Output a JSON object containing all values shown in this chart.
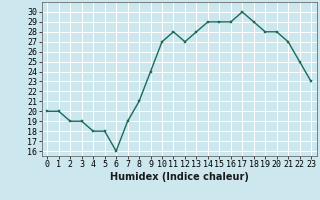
{
  "x": [
    0,
    1,
    2,
    3,
    4,
    5,
    6,
    7,
    8,
    9,
    10,
    11,
    12,
    13,
    14,
    15,
    16,
    17,
    18,
    19,
    20,
    21,
    22,
    23
  ],
  "y": [
    20,
    20,
    19,
    19,
    18,
    18,
    16,
    19,
    21,
    24,
    27,
    28,
    27,
    28,
    29,
    29,
    29,
    30,
    29,
    28,
    28,
    27,
    25,
    23
  ],
  "line_color": "#1a6b5a",
  "marker_color": "#1a6b5a",
  "bg_color": "#cce8ee",
  "grid_color": "#ffffff",
  "xlabel": "Humidex (Indice chaleur)",
  "xlim": [
    -0.5,
    23.5
  ],
  "ylim": [
    15.5,
    31.0
  ],
  "yticks": [
    16,
    17,
    18,
    19,
    20,
    21,
    22,
    23,
    24,
    25,
    26,
    27,
    28,
    29,
    30
  ],
  "xticks": [
    0,
    1,
    2,
    3,
    4,
    5,
    6,
    7,
    8,
    9,
    10,
    11,
    12,
    13,
    14,
    15,
    16,
    17,
    18,
    19,
    20,
    21,
    22,
    23
  ],
  "xlabel_fontsize": 7,
  "tick_fontsize": 6
}
